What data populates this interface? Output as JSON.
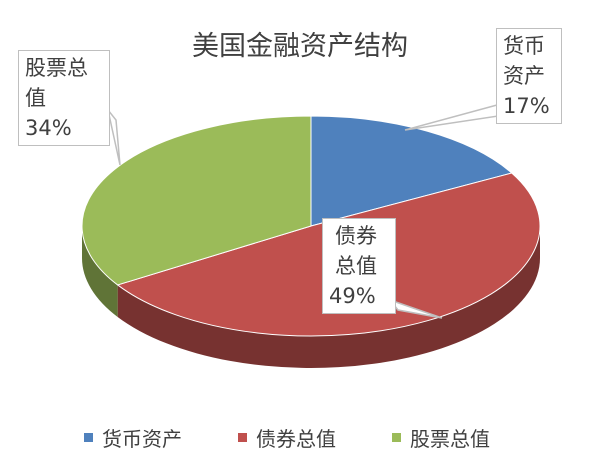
{
  "chart_data": {
    "type": "pie",
    "title": "美国金融资产结构",
    "categories": [
      "货币资产",
      "债券总值",
      "股票总值"
    ],
    "values": [
      17,
      49,
      34
    ],
    "value_labels": [
      "17%",
      "49%",
      "34%"
    ],
    "colors": [
      "#4f81bd",
      "#c0504d",
      "#9bbb59"
    ],
    "legend": "bottom"
  }
}
